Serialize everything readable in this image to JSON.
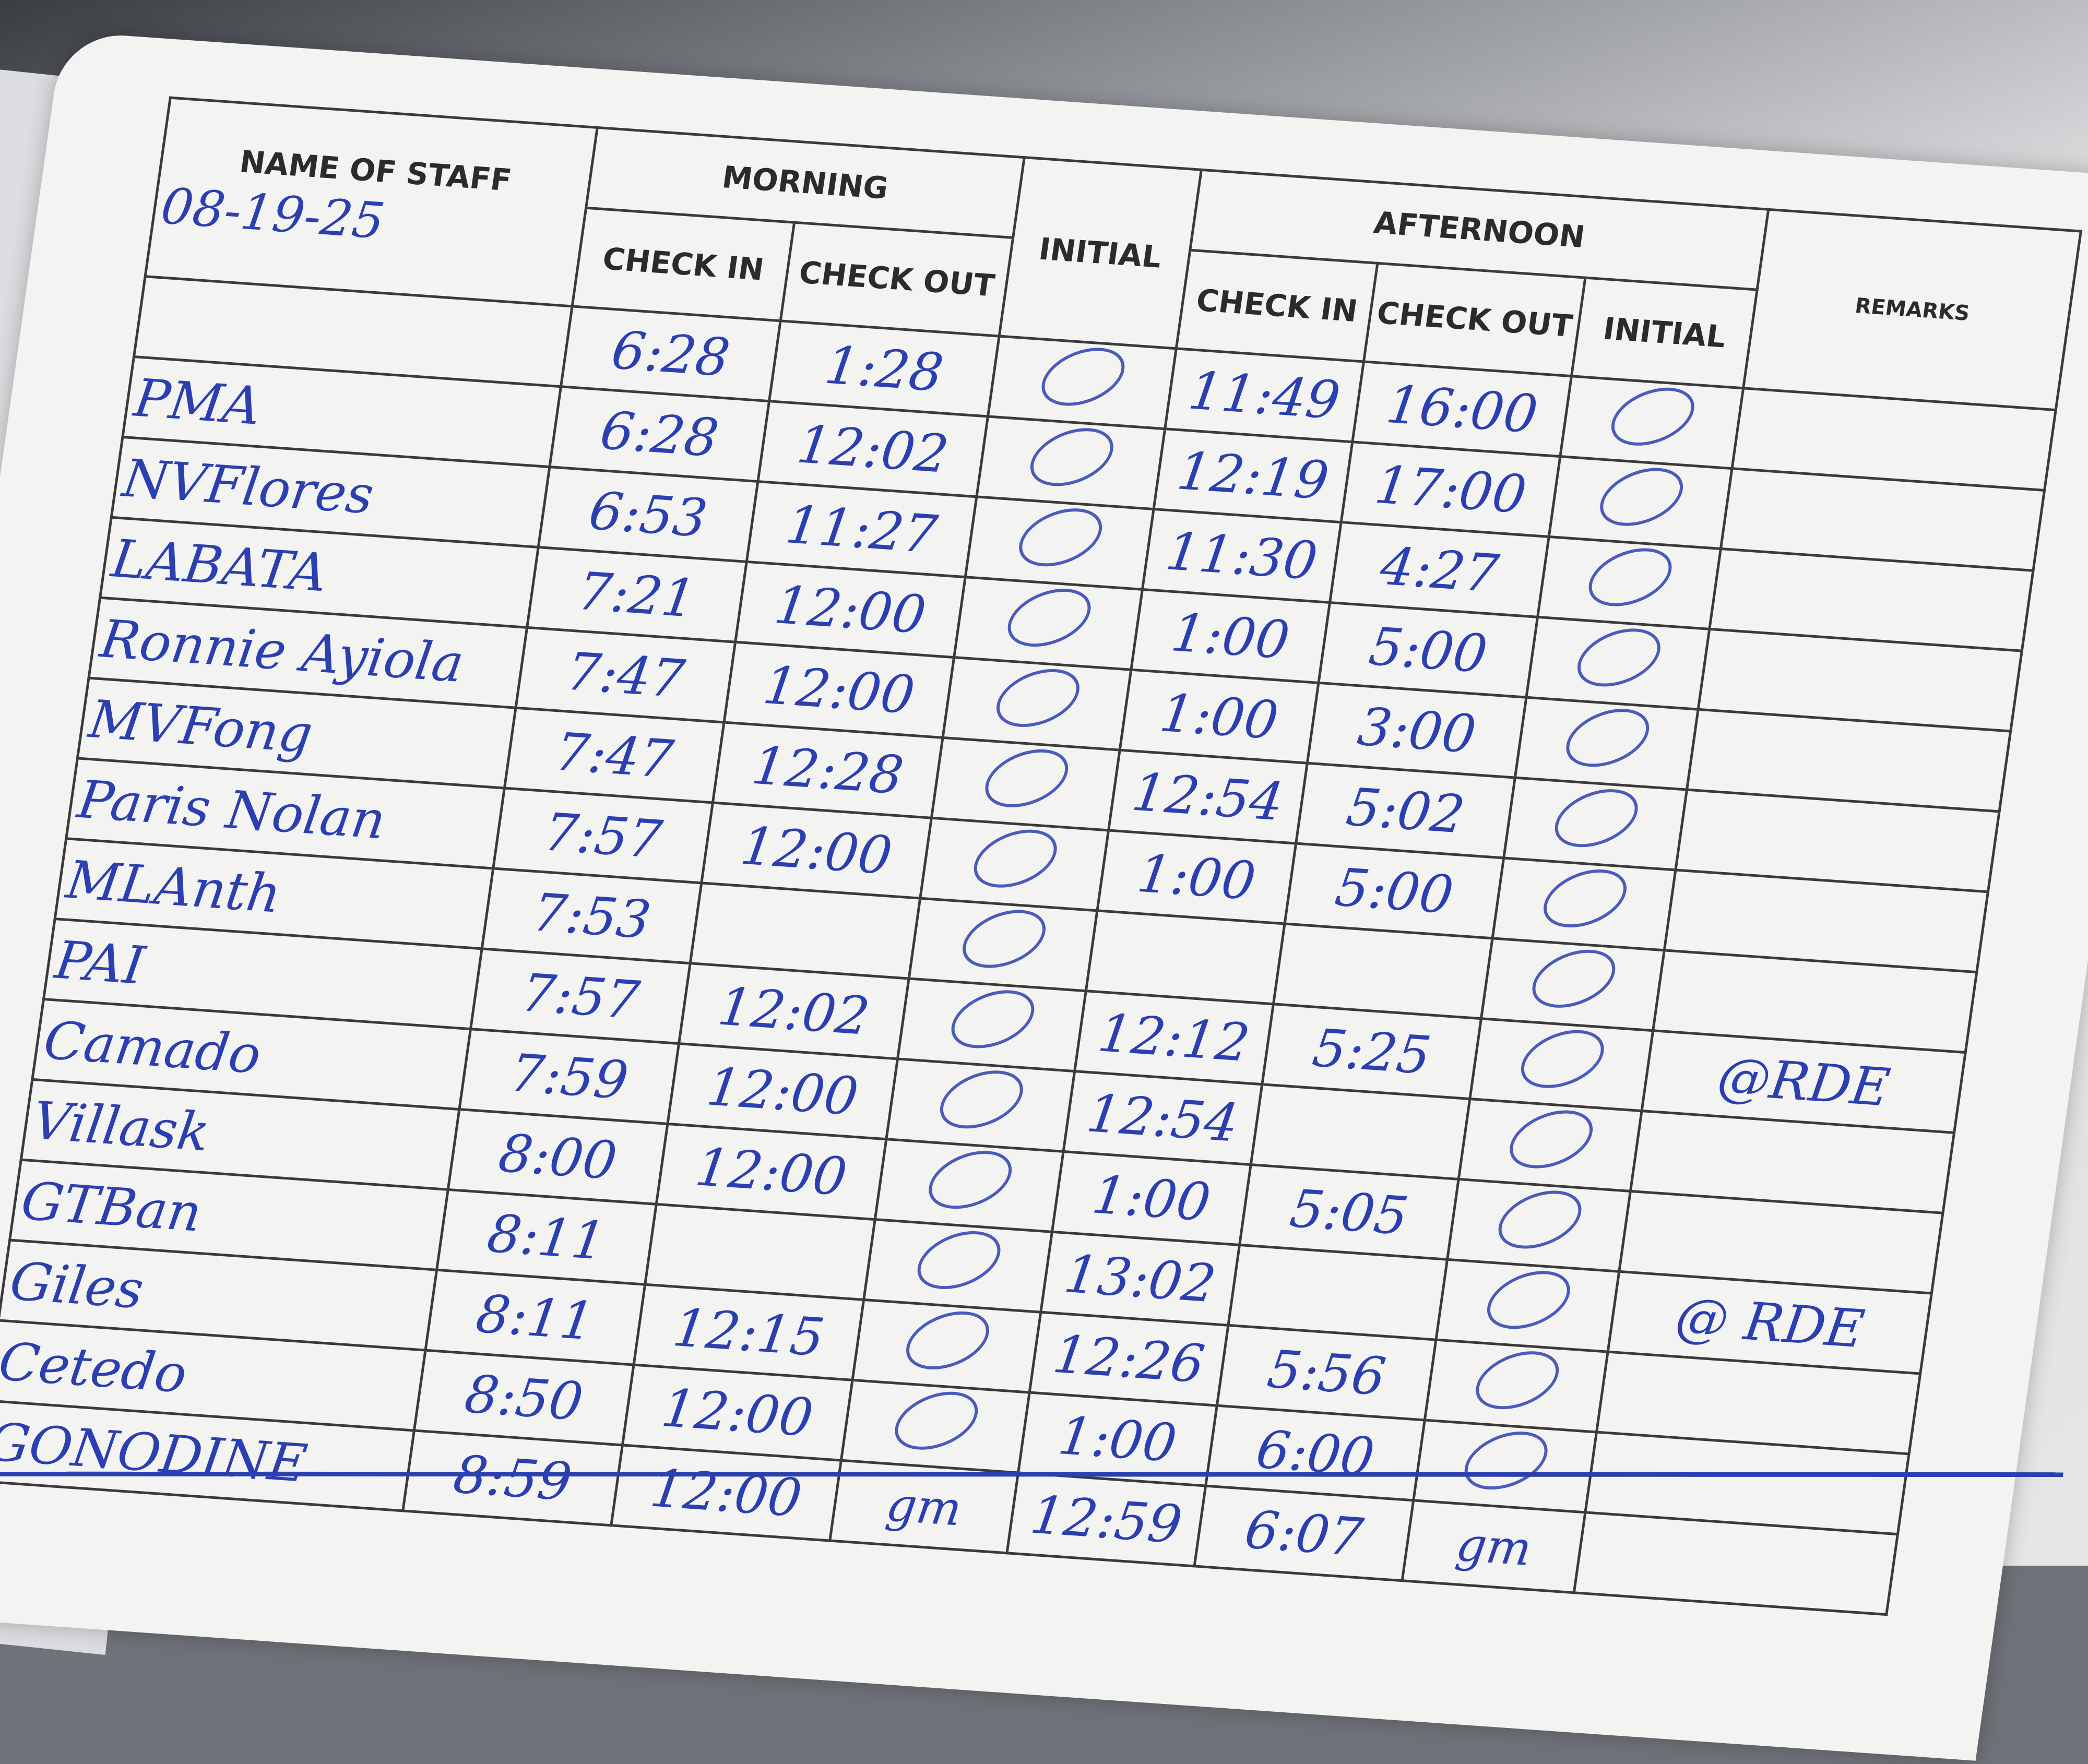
{
  "header": {
    "name_of_staff": "NAME OF STAFF",
    "date": "08-19-25",
    "morning": "MORNING",
    "morning_check_in": "CHECK IN",
    "morning_check_out": "CHECK OUT",
    "morning_initial": "INITIAL",
    "afternoon": "AFTERNOON",
    "afternoon_check_in": "CHECK IN",
    "afternoon_check_out": "CHECK OUT",
    "afternoon_initial": "INITIAL",
    "remarks": "REMARKS"
  },
  "ink_color": "#2c3fb0",
  "rows": [
    {
      "name": "",
      "am_in": "6:28",
      "am_out": "1:28",
      "am_initial": "",
      "pm_in": "11:49",
      "pm_out": "16:00",
      "pm_initial": "",
      "remarks": ""
    },
    {
      "name": "PMA",
      "am_in": "6:28",
      "am_out": "12:02",
      "am_initial": "",
      "pm_in": "12:19",
      "pm_out": "17:00",
      "pm_initial": "",
      "remarks": ""
    },
    {
      "name": "NVFlores",
      "am_in": "6:53",
      "am_out": "11:27",
      "am_initial": "",
      "pm_in": "11:30",
      "pm_out": "4:27",
      "pm_initial": "",
      "remarks": ""
    },
    {
      "name": "LABATA",
      "am_in": "7:21",
      "am_out": "12:00",
      "am_initial": "",
      "pm_in": "1:00",
      "pm_out": "5:00",
      "pm_initial": "",
      "remarks": ""
    },
    {
      "name": "Ronnie Ayiola",
      "am_in": "7:47",
      "am_out": "12:00",
      "am_initial": "",
      "pm_in": "1:00",
      "pm_out": "3:00",
      "pm_initial": "",
      "remarks": ""
    },
    {
      "name": "MVFong",
      "am_in": "7:47",
      "am_out": "12:28",
      "am_initial": "",
      "pm_in": "12:54",
      "pm_out": "5:02",
      "pm_initial": "",
      "remarks": ""
    },
    {
      "name": "Paris Nolan",
      "am_in": "7:57",
      "am_out": "12:00",
      "am_initial": "",
      "pm_in": "1:00",
      "pm_out": "5:00",
      "pm_initial": "",
      "remarks": ""
    },
    {
      "name": "MLAnth",
      "am_in": "7:53",
      "am_out": "",
      "am_initial": "",
      "pm_in": "",
      "pm_out": "",
      "pm_initial": "",
      "remarks": ""
    },
    {
      "name": "PAI",
      "am_in": "7:57",
      "am_out": "12:02",
      "am_initial": "",
      "pm_in": "12:12",
      "pm_out": "5:25",
      "pm_initial": "",
      "remarks": "@RDE"
    },
    {
      "name": "Camado",
      "am_in": "7:59",
      "am_out": "12:00",
      "am_initial": "",
      "pm_in": "12:54",
      "pm_out": "",
      "pm_initial": "",
      "remarks": ""
    },
    {
      "name": "Villask",
      "am_in": "8:00",
      "am_out": "12:00",
      "am_initial": "",
      "pm_in": "1:00",
      "pm_out": "5:05",
      "pm_initial": "",
      "remarks": ""
    },
    {
      "name": "GTBan",
      "am_in": "8:11",
      "am_out": "",
      "am_initial": "",
      "pm_in": "13:02",
      "pm_out": "",
      "pm_initial": "",
      "remarks": "@ RDE"
    },
    {
      "name": "Giles",
      "am_in": "8:11",
      "am_out": "12:15",
      "am_initial": "",
      "pm_in": "12:26",
      "pm_out": "5:56",
      "pm_initial": "",
      "remarks": ""
    },
    {
      "name": "Cetedo",
      "am_in": "8:50",
      "am_out": "12:00",
      "am_initial": "",
      "pm_in": "1:00",
      "pm_out": "6:00",
      "pm_initial": "",
      "remarks": ""
    },
    {
      "name": "GONODINE",
      "am_in": "8:59",
      "am_out": "12:00",
      "am_initial": "gm",
      "pm_in": "12:59",
      "pm_out": "6:07",
      "pm_initial": "gm",
      "remarks": ""
    }
  ]
}
